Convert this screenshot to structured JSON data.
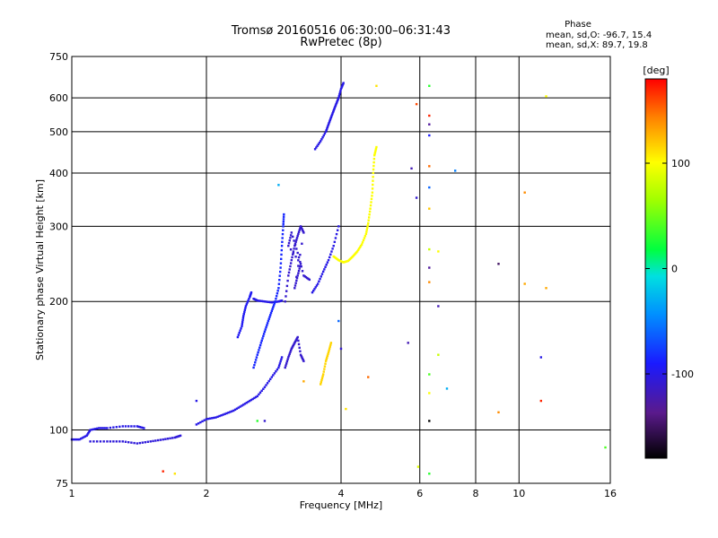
{
  "chart_data": {
    "type": "scatter",
    "title": "Tromsø 20160516 06:30:00–06:31:43",
    "subtitle": "RwPretec (8p)",
    "xlabel": "Frequency [MHz]",
    "ylabel": "Stationary phase Virtual Height [km]",
    "x_scale": "log",
    "y_scale": "log",
    "xlim": [
      1,
      16
    ],
    "ylim": [
      75,
      750
    ],
    "grid": true,
    "x_ticks": [
      {
        "value": 1,
        "label": "1"
      },
      {
        "value": 2,
        "label": "2"
      },
      {
        "value": 4,
        "label": "4"
      },
      {
        "value": 6,
        "label": "6"
      },
      {
        "value": 8,
        "label": "8"
      },
      {
        "value": 10,
        "label": "10"
      },
      {
        "value": 16,
        "label": "16"
      }
    ],
    "y_ticks": [
      {
        "value": 75,
        "label": "75"
      },
      {
        "value": 100,
        "label": "100"
      },
      {
        "value": 200,
        "label": "200"
      },
      {
        "value": 300,
        "label": "300"
      },
      {
        "value": 400,
        "label": "400"
      },
      {
        "value": 500,
        "label": "500"
      },
      {
        "value": 600,
        "label": "600"
      },
      {
        "value": 750,
        "label": "750"
      }
    ],
    "stats": {
      "heading": "Phase",
      "line1": "mean, sd,O: -96.7, 15.4",
      "line2": "mean, sd,X: 89.7, 19.8"
    },
    "colorbar": {
      "label": "[deg]",
      "range": [
        -180,
        180
      ],
      "ticks": [
        {
          "value": 100,
          "label": "100"
        },
        {
          "value": 0,
          "label": "0"
        },
        {
          "value": -100,
          "label": "-100"
        }
      ]
    },
    "traces": [
      {
        "phase": -100,
        "points": [
          [
            1.0,
            95
          ],
          [
            1.04,
            95
          ],
          [
            1.08,
            97
          ],
          [
            1.1,
            100
          ],
          [
            1.15,
            101
          ],
          [
            1.2,
            101
          ],
          [
            1.3,
            102
          ],
          [
            1.4,
            102
          ],
          [
            1.45,
            101
          ]
        ]
      },
      {
        "phase": -105,
        "points": [
          [
            1.1,
            94
          ],
          [
            1.2,
            94
          ],
          [
            1.3,
            94
          ],
          [
            1.4,
            93
          ],
          [
            1.5,
            94
          ],
          [
            1.6,
            95
          ],
          [
            1.7,
            96
          ],
          [
            1.75,
            97
          ]
        ]
      },
      {
        "phase": -100,
        "points": [
          [
            1.9,
            103
          ],
          [
            2.0,
            106
          ],
          [
            2.1,
            107
          ],
          [
            2.2,
            109
          ],
          [
            2.3,
            111
          ],
          [
            2.4,
            114
          ],
          [
            2.5,
            117
          ],
          [
            2.6,
            120
          ],
          [
            2.7,
            126
          ],
          [
            2.8,
            133
          ],
          [
            2.9,
            140
          ],
          [
            2.95,
            148
          ]
        ]
      },
      {
        "phase": -95,
        "points": [
          [
            2.35,
            165
          ],
          [
            2.4,
            175
          ],
          [
            2.42,
            185
          ],
          [
            2.45,
            195
          ],
          [
            2.5,
            205
          ],
          [
            2.52,
            210
          ]
        ]
      },
      {
        "phase": -100,
        "points": [
          [
            2.55,
            203
          ],
          [
            2.6,
            201
          ],
          [
            2.7,
            200
          ],
          [
            2.8,
            199
          ],
          [
            2.9,
            200
          ],
          [
            2.95,
            201
          ]
        ]
      },
      {
        "phase": -85,
        "points": [
          [
            2.55,
            140
          ],
          [
            2.6,
            150
          ],
          [
            2.65,
            160
          ],
          [
            2.7,
            170
          ],
          [
            2.75,
            180
          ],
          [
            2.8,
            190
          ],
          [
            2.85,
            200
          ],
          [
            2.9,
            215
          ],
          [
            2.93,
            240
          ],
          [
            2.95,
            270
          ],
          [
            2.97,
            300
          ],
          [
            2.98,
            320
          ]
        ]
      },
      {
        "phase": -110,
        "points": [
          [
            3.0,
            200
          ],
          [
            3.05,
            230
          ],
          [
            3.1,
            250
          ],
          [
            3.15,
            270
          ],
          [
            3.2,
            285
          ],
          [
            3.25,
            300
          ],
          [
            3.3,
            290
          ],
          [
            3.15,
            215
          ],
          [
            3.2,
            230
          ],
          [
            3.25,
            245
          ],
          [
            3.05,
            270
          ],
          [
            3.1,
            290
          ],
          [
            3.2,
            260
          ],
          [
            3.3,
            230
          ],
          [
            3.4,
            225
          ]
        ]
      },
      {
        "phase": -110,
        "points": [
          [
            3.0,
            140
          ],
          [
            3.05,
            148
          ],
          [
            3.1,
            155
          ],
          [
            3.15,
            160
          ],
          [
            3.2,
            165
          ],
          [
            3.25,
            150
          ],
          [
            3.3,
            145
          ]
        ]
      },
      {
        "phase": -100,
        "points": [
          [
            3.45,
            210
          ],
          [
            3.55,
            220
          ],
          [
            3.65,
            235
          ],
          [
            3.75,
            250
          ],
          [
            3.85,
            270
          ],
          [
            3.95,
            300
          ]
        ]
      },
      {
        "phase": -100,
        "points": [
          [
            3.5,
            455
          ],
          [
            3.6,
            475
          ],
          [
            3.7,
            500
          ],
          [
            3.75,
            520
          ],
          [
            3.8,
            540
          ],
          [
            3.85,
            560
          ],
          [
            3.9,
            580
          ],
          [
            3.95,
            600
          ],
          [
            4.0,
            630
          ],
          [
            4.05,
            650
          ]
        ]
      },
      {
        "phase": 100,
        "points": [
          [
            3.85,
            255
          ],
          [
            3.95,
            250
          ],
          [
            4.05,
            247
          ],
          [
            4.15,
            249
          ],
          [
            4.25,
            255
          ],
          [
            4.35,
            262
          ],
          [
            4.45,
            272
          ],
          [
            4.55,
            288
          ],
          [
            4.6,
            305
          ],
          [
            4.65,
            330
          ],
          [
            4.7,
            360
          ],
          [
            4.72,
            400
          ],
          [
            4.75,
            440
          ],
          [
            4.8,
            460
          ]
        ]
      },
      {
        "phase": 115,
        "points": [
          [
            3.6,
            128
          ],
          [
            3.65,
            135
          ],
          [
            3.7,
            145
          ],
          [
            3.75,
            152
          ],
          [
            3.8,
            160
          ]
        ]
      }
    ],
    "points": [
      {
        "x": 1.6,
        "y": 80,
        "phase": 170
      },
      {
        "x": 1.7,
        "y": 79,
        "phase": 110
      },
      {
        "x": 1.9,
        "y": 117,
        "phase": -100
      },
      {
        "x": 2.6,
        "y": 105,
        "phase": 30
      },
      {
        "x": 2.7,
        "y": 105,
        "phase": -110
      },
      {
        "x": 2.9,
        "y": 375,
        "phase": -30
      },
      {
        "x": 3.3,
        "y": 130,
        "phase": 130
      },
      {
        "x": 3.95,
        "y": 180,
        "phase": -60
      },
      {
        "x": 4.0,
        "y": 155,
        "phase": -110
      },
      {
        "x": 4.1,
        "y": 112,
        "phase": 110
      },
      {
        "x": 4.6,
        "y": 133,
        "phase": 150
      },
      {
        "x": 4.8,
        "y": 640,
        "phase": 110
      },
      {
        "x": 5.65,
        "y": 160,
        "phase": -120
      },
      {
        "x": 5.75,
        "y": 410,
        "phase": -120
      },
      {
        "x": 5.9,
        "y": 580,
        "phase": 160
      },
      {
        "x": 5.9,
        "y": 350,
        "phase": -110
      },
      {
        "x": 5.95,
        "y": 82,
        "phase": 90
      },
      {
        "x": 6.3,
        "y": 640,
        "phase": 30
      },
      {
        "x": 6.3,
        "y": 545,
        "phase": 170
      },
      {
        "x": 6.3,
        "y": 520,
        "phase": -130
      },
      {
        "x": 6.3,
        "y": 490,
        "phase": -90
      },
      {
        "x": 6.3,
        "y": 415,
        "phase": 150
      },
      {
        "x": 6.3,
        "y": 370,
        "phase": -60
      },
      {
        "x": 6.3,
        "y": 330,
        "phase": 120
      },
      {
        "x": 6.3,
        "y": 265,
        "phase": 80
      },
      {
        "x": 6.3,
        "y": 240,
        "phase": -130
      },
      {
        "x": 6.3,
        "y": 222,
        "phase": 140
      },
      {
        "x": 6.3,
        "y": 135,
        "phase": 40
      },
      {
        "x": 6.3,
        "y": 122,
        "phase": 100
      },
      {
        "x": 6.3,
        "y": 105,
        "phase": -180
      },
      {
        "x": 6.3,
        "y": 79,
        "phase": 30
      },
      {
        "x": 6.6,
        "y": 195,
        "phase": -120
      },
      {
        "x": 6.6,
        "y": 150,
        "phase": 80
      },
      {
        "x": 6.6,
        "y": 262,
        "phase": 100
      },
      {
        "x": 6.9,
        "y": 125,
        "phase": -30
      },
      {
        "x": 7.2,
        "y": 405,
        "phase": -50
      },
      {
        "x": 9.0,
        "y": 245,
        "phase": -150
      },
      {
        "x": 9.0,
        "y": 110,
        "phase": 140
      },
      {
        "x": 10.3,
        "y": 360,
        "phase": 140
      },
      {
        "x": 10.3,
        "y": 220,
        "phase": 130
      },
      {
        "x": 11.2,
        "y": 148,
        "phase": -100
      },
      {
        "x": 11.2,
        "y": 117,
        "phase": 170
      },
      {
        "x": 11.5,
        "y": 605,
        "phase": 100
      },
      {
        "x": 11.5,
        "y": 215,
        "phase": 130
      },
      {
        "x": 15.6,
        "y": 91,
        "phase": 40
      }
    ]
  }
}
